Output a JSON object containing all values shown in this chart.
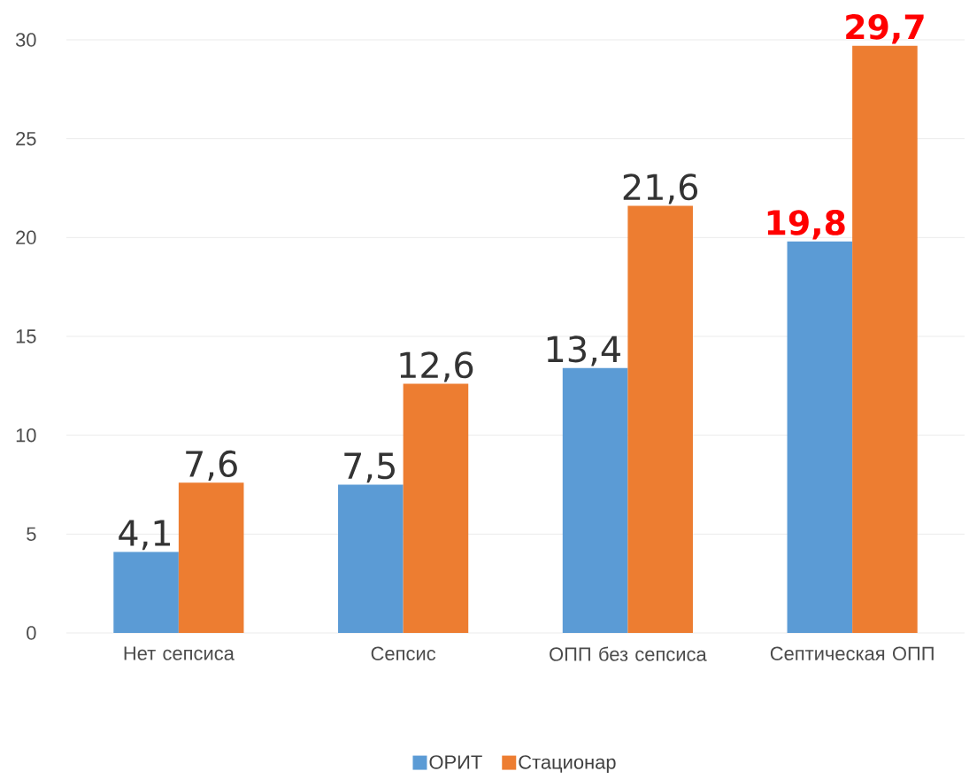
{
  "chart_data": {
    "type": "bar",
    "categories": [
      "Нет сепсиса",
      "Сепсис",
      "ОПП без сепсиса",
      "Септическая ОПП"
    ],
    "series": [
      {
        "name": "ОРИТ",
        "color": "#5b9bd5",
        "values": [
          4.1,
          7.5,
          13.4,
          19.8
        ],
        "value_labels": [
          "4,1",
          "7,5",
          "13,4",
          "19,8"
        ]
      },
      {
        "name": "Стационар",
        "color": "#ed7d31",
        "values": [
          7.6,
          12.6,
          21.6,
          29.7
        ],
        "value_labels": [
          "7,6",
          "12,6",
          "21,6",
          "29,7"
        ]
      }
    ],
    "ylim": [
      0,
      30
    ],
    "yticks": [
      0,
      5,
      10,
      15,
      20,
      25,
      30
    ],
    "grid": "y",
    "legend": "bottom"
  }
}
